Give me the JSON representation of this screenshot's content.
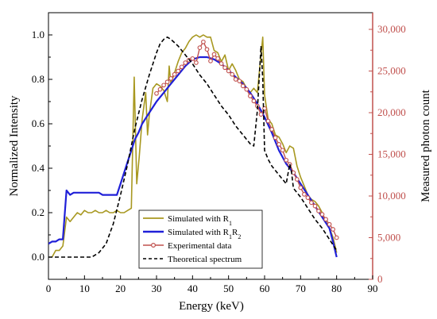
{
  "chart_data": {
    "type": "line",
    "xlabel": "Energy (keV)",
    "ylabel": "Normalized Intensity",
    "y2label": "Measured photon count",
    "xlim": [
      0,
      90
    ],
    "ylim": [
      -0.1,
      1.1
    ],
    "y2lim": [
      0,
      32000
    ],
    "xticks": [
      "0",
      "10",
      "20",
      "30",
      "40",
      "50",
      "60",
      "70",
      "80",
      "90"
    ],
    "yticks": [
      "0.0",
      "0.2",
      "0.4",
      "0.6",
      "0.8",
      "1.0"
    ],
    "y2ticks": [
      "0",
      "5,000",
      "10,000",
      "15,000",
      "20,000",
      "25,000",
      "30,000"
    ],
    "grid": false,
    "legend_position": "bottom-center",
    "series": [
      {
        "name": "Simulated with R",
        "name_sub": "1",
        "axis": "left",
        "color": "#a89820",
        "style": "solid",
        "x": [
          1,
          2,
          3,
          4,
          5,
          6,
          7,
          8,
          9,
          10,
          11,
          12,
          13,
          14,
          15,
          16,
          17,
          18,
          19,
          20,
          21,
          22,
          23,
          23.8,
          24.5,
          25.2,
          26,
          27,
          27.5,
          28,
          29,
          30,
          31,
          32,
          33,
          33.5,
          34,
          35,
          36,
          37,
          38,
          39,
          40,
          41,
          42,
          43,
          44,
          45,
          46,
          47,
          48,
          49,
          50,
          51,
          52,
          53,
          54,
          55,
          56,
          57,
          58,
          59,
          59.5,
          60,
          61,
          62,
          63,
          64,
          65,
          66,
          67,
          68,
          69,
          70,
          71,
          72,
          73,
          74,
          75,
          76,
          77,
          78,
          79,
          80
        ],
        "y": [
          0.0,
          0.03,
          0.03,
          0.05,
          0.18,
          0.16,
          0.18,
          0.2,
          0.19,
          0.21,
          0.2,
          0.2,
          0.21,
          0.2,
          0.2,
          0.21,
          0.2,
          0.2,
          0.21,
          0.2,
          0.2,
          0.21,
          0.22,
          0.81,
          0.33,
          0.45,
          0.62,
          0.74,
          0.55,
          0.64,
          0.76,
          0.78,
          0.77,
          0.75,
          0.7,
          0.86,
          0.78,
          0.83,
          0.88,
          0.92,
          0.94,
          0.97,
          0.99,
          1.0,
          0.99,
          1.0,
          0.99,
          0.99,
          0.93,
          0.92,
          0.88,
          0.91,
          0.84,
          0.87,
          0.84,
          0.8,
          0.79,
          0.76,
          0.74,
          0.76,
          0.74,
          0.91,
          0.99,
          0.73,
          0.62,
          0.6,
          0.55,
          0.54,
          0.51,
          0.47,
          0.5,
          0.49,
          0.41,
          0.36,
          0.32,
          0.28,
          0.26,
          0.25,
          0.23,
          0.2,
          0.16,
          0.13,
          0.09,
          0.02
        ]
      },
      {
        "name": "Simulated with R",
        "name_sub": "1",
        "name_mid": "R",
        "name_sub2": "2",
        "axis": "left",
        "color": "#2020d8",
        "style": "solid",
        "x": [
          0,
          1,
          2,
          3,
          4,
          5,
          6,
          7,
          8,
          9,
          10,
          11,
          12,
          13,
          14,
          15,
          16,
          17,
          18,
          19,
          20,
          21,
          22,
          23,
          24,
          25,
          26,
          28,
          30,
          32,
          34,
          36,
          38,
          40,
          42,
          43,
          44,
          46,
          48,
          50,
          52,
          54,
          56,
          58,
          60,
          62,
          64,
          66,
          68,
          70,
          72,
          74,
          76,
          78,
          79,
          80
        ],
        "y": [
          0.06,
          0.07,
          0.07,
          0.08,
          0.08,
          0.3,
          0.28,
          0.29,
          0.29,
          0.29,
          0.29,
          0.29,
          0.29,
          0.29,
          0.29,
          0.28,
          0.28,
          0.28,
          0.28,
          0.28,
          0.33,
          0.38,
          0.43,
          0.48,
          0.53,
          0.56,
          0.6,
          0.65,
          0.7,
          0.74,
          0.78,
          0.82,
          0.86,
          0.89,
          0.9,
          0.9,
          0.9,
          0.89,
          0.87,
          0.84,
          0.81,
          0.78,
          0.74,
          0.69,
          0.63,
          0.56,
          0.48,
          0.42,
          0.38,
          0.33,
          0.28,
          0.23,
          0.18,
          0.13,
          0.07,
          0.0
        ]
      },
      {
        "name": "Experimental data",
        "axis": "right",
        "color": "#c0504d",
        "style": "solid-marker",
        "x": [
          40,
          41,
          42,
          43,
          44,
          45,
          46,
          47,
          48,
          49,
          50,
          51,
          52,
          53,
          54,
          55,
          56,
          57,
          58,
          59,
          60,
          61,
          62,
          63,
          64,
          65,
          66,
          67,
          68,
          69,
          70,
          71,
          72,
          73,
          74,
          75,
          76,
          77,
          78,
          79,
          80,
          30,
          31,
          32,
          33,
          34,
          35,
          36,
          37,
          38,
          39
        ],
        "y": [
          26500,
          26000,
          27800,
          28500,
          27600,
          26200,
          27000,
          26500,
          25900,
          25400,
          25000,
          24600,
          24000,
          23800,
          23200,
          22800,
          22000,
          21400,
          20800,
          19800,
          20500,
          19000,
          18000,
          17000,
          16200,
          15500,
          14300,
          13800,
          12800,
          12000,
          11000,
          10200,
          9800,
          9200,
          8800,
          8200,
          7800,
          7200,
          6600,
          6000,
          5000,
          22300,
          22800,
          23300,
          23700,
          24100,
          24600,
          25000,
          25500,
          26000,
          26300
        ]
      },
      {
        "name": "Theoretical spectrum",
        "axis": "left",
        "color": "#000000",
        "style": "dashed",
        "x": [
          0,
          5,
          10,
          12,
          14,
          16,
          18,
          20,
          22,
          24,
          26,
          28,
          30,
          31,
          32,
          33,
          34,
          36,
          38,
          40,
          42,
          44,
          46,
          48,
          50,
          52,
          54,
          56,
          57,
          58,
          59,
          59.5,
          60,
          61,
          62,
          64,
          66,
          67,
          67.5,
          68,
          70,
          72,
          74,
          76,
          78,
          80
        ],
        "y": [
          0.0,
          0.0,
          0.0,
          0.0,
          0.02,
          0.06,
          0.15,
          0.28,
          0.42,
          0.58,
          0.71,
          0.82,
          0.92,
          0.96,
          0.98,
          0.99,
          0.98,
          0.95,
          0.91,
          0.87,
          0.82,
          0.78,
          0.73,
          0.68,
          0.64,
          0.59,
          0.55,
          0.51,
          0.5,
          0.66,
          0.95,
          0.8,
          0.48,
          0.44,
          0.41,
          0.37,
          0.33,
          0.42,
          0.38,
          0.31,
          0.27,
          0.22,
          0.17,
          0.13,
          0.08,
          0.03
        ]
      }
    ]
  }
}
